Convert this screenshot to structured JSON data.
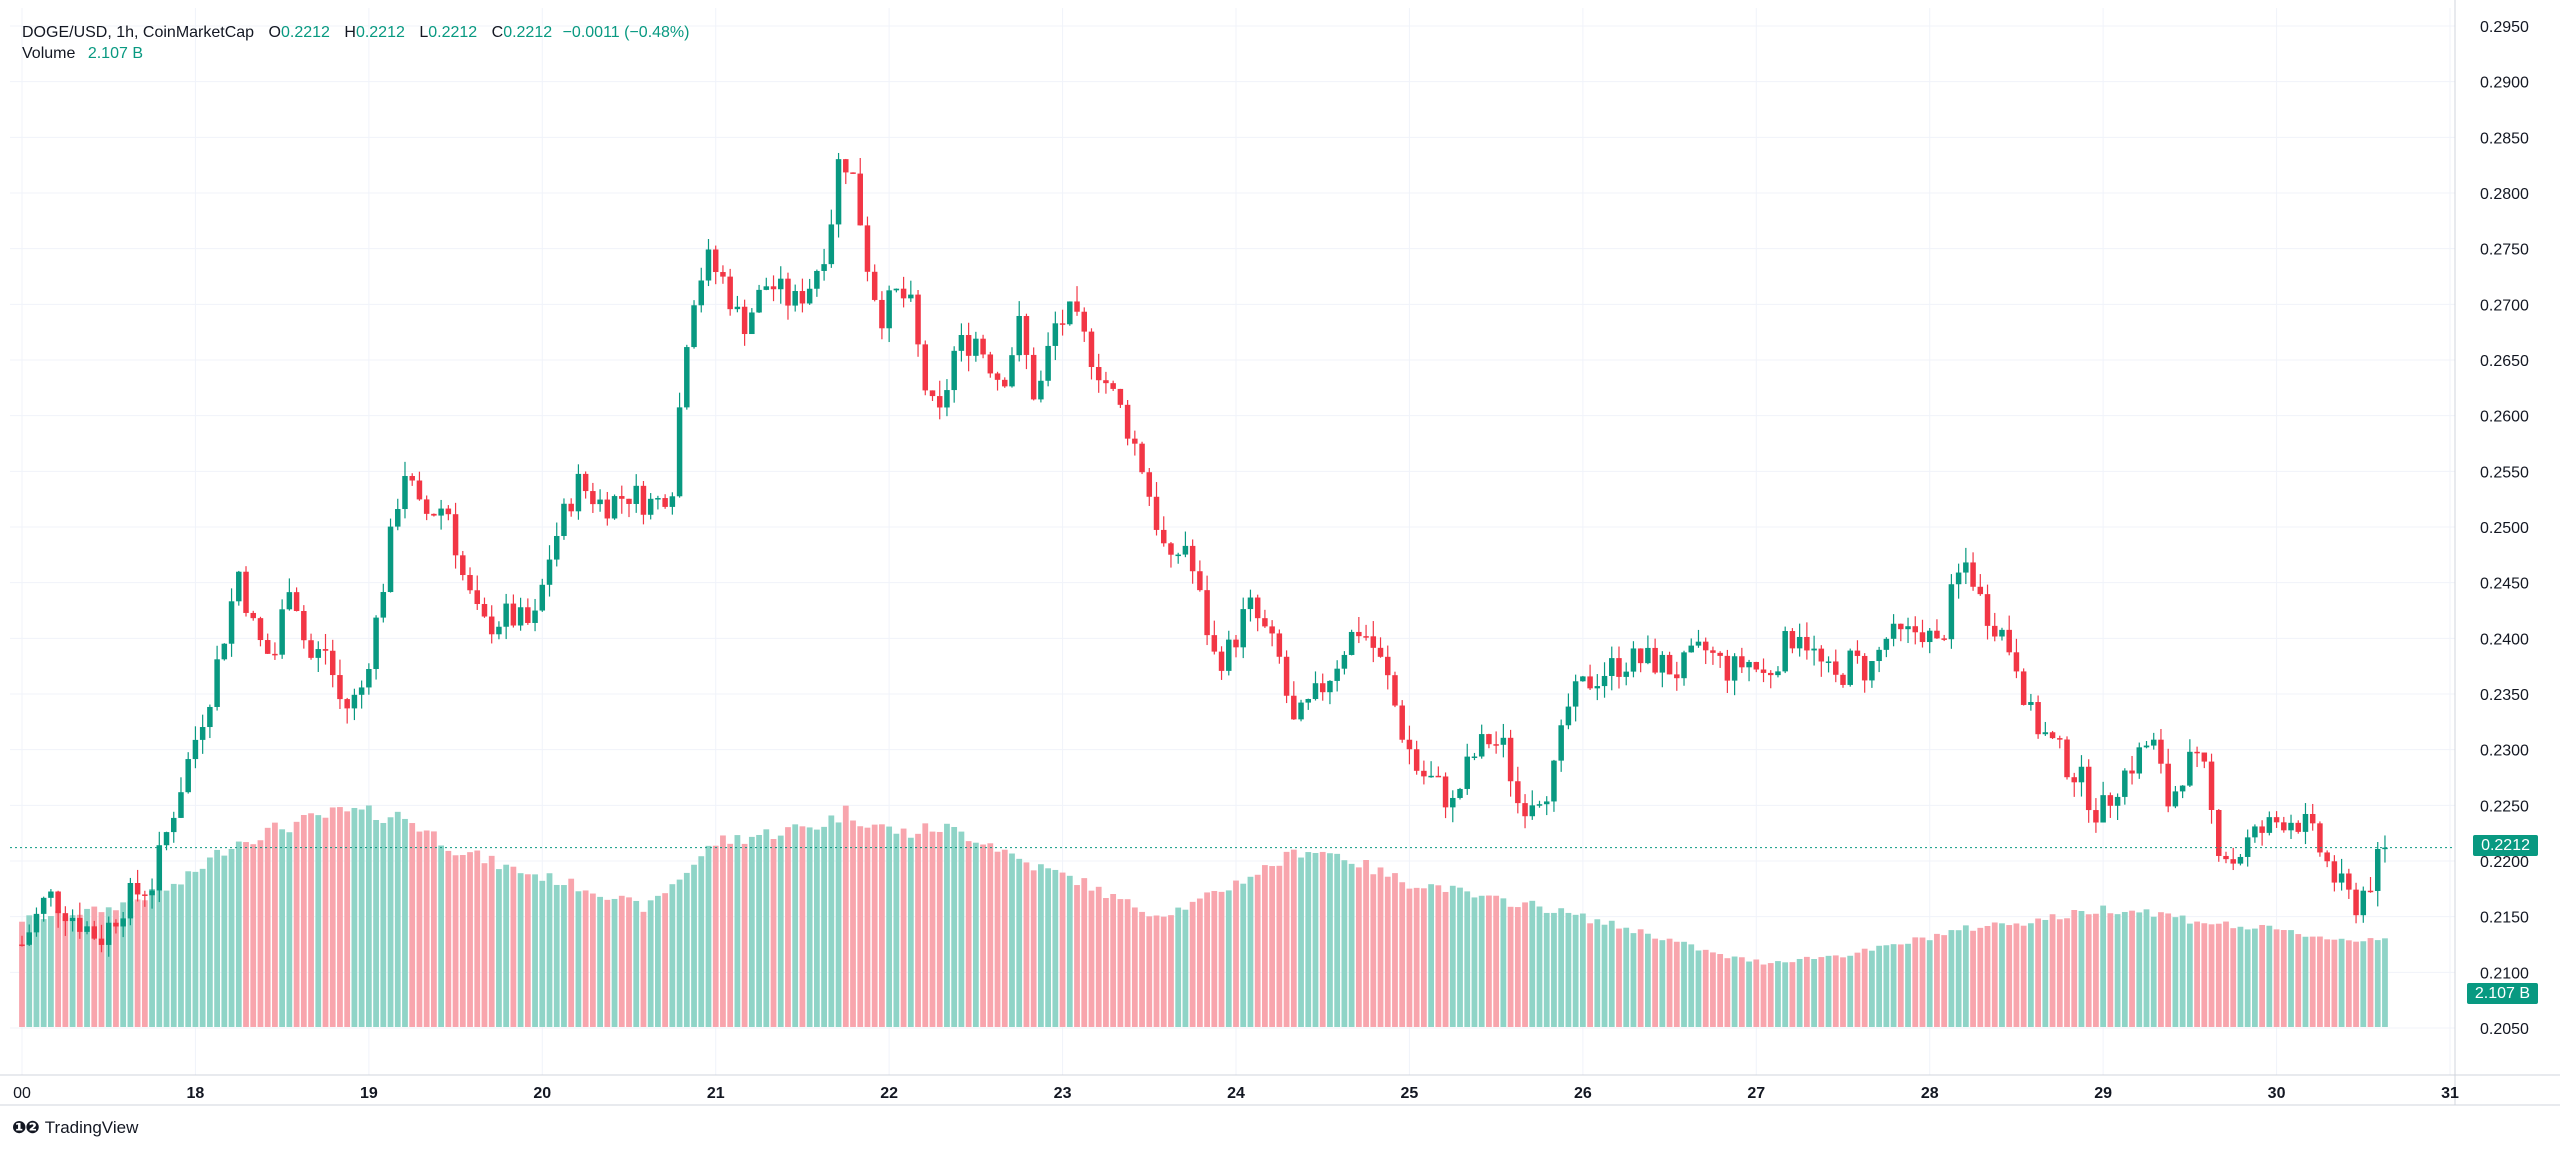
{
  "legend": {
    "symbol": "DOGE/USD, 1h, CoinMarketCap",
    "o_label": "O",
    "o_value": "0.2212",
    "h_label": "H",
    "h_value": "0.2212",
    "l_label": "L",
    "l_value": "0.2212",
    "c_label": "C",
    "c_value": "0.2212",
    "change": "−0.0011 (−0.48%)",
    "volume_label": "Volume",
    "volume_value": "2.107 B"
  },
  "price_tag": "0.2212",
  "volume_tag": "2.107 B",
  "brand": {
    "logo": "❶❷",
    "name": "TradingView"
  },
  "colors": {
    "up": "#089981",
    "down": "#f23645",
    "vol_up": "#8fd4c7",
    "vol_down": "#f8a5ad",
    "grid": "#f0f3fa",
    "last_line": "#089981"
  },
  "chart_data": {
    "type": "candlestick",
    "symbol": "DOGE/USD",
    "interval": "1h",
    "source": "CoinMarketCap",
    "y_ticks": [
      "0.2950",
      "0.2900",
      "0.2850",
      "0.2800",
      "0.2750",
      "0.2700",
      "0.2650",
      "0.2600",
      "0.2550",
      "0.2500",
      "0.2450",
      "0.2400",
      "0.2350",
      "0.2300",
      "0.2250",
      "0.2200",
      "0.2150",
      "0.2100",
      "0.2050"
    ],
    "x_ticks": [
      "00",
      "18",
      "19",
      "20",
      "21",
      "22",
      "23",
      "24",
      "25",
      "26",
      "27",
      "28",
      "29",
      "30",
      "31"
    ],
    "ylim": [
      0.2005,
      0.296
    ],
    "grid": true,
    "last_price": 0.2212,
    "close_path": [
      [
        17.0,
        0.2125
      ],
      [
        17.15,
        0.217
      ],
      [
        17.3,
        0.215
      ],
      [
        17.45,
        0.213
      ],
      [
        17.6,
        0.2165
      ],
      [
        17.75,
        0.218
      ],
      [
        17.9,
        0.226
      ],
      [
        18.1,
        0.236
      ],
      [
        18.25,
        0.246
      ],
      [
        18.35,
        0.24
      ],
      [
        18.45,
        0.238
      ],
      [
        18.55,
        0.246
      ],
      [
        18.65,
        0.238
      ],
      [
        18.75,
        0.239
      ],
      [
        18.85,
        0.2335
      ],
      [
        18.95,
        0.235
      ],
      [
        19.05,
        0.242
      ],
      [
        19.2,
        0.2555
      ],
      [
        19.3,
        0.251
      ],
      [
        19.45,
        0.252
      ],
      [
        19.55,
        0.245
      ],
      [
        19.65,
        0.241
      ],
      [
        19.8,
        0.242
      ],
      [
        19.95,
        0.241
      ],
      [
        20.05,
        0.248
      ],
      [
        20.2,
        0.254
      ],
      [
        20.35,
        0.252
      ],
      [
        20.5,
        0.253
      ],
      [
        20.65,
        0.252
      ],
      [
        20.75,
        0.254
      ],
      [
        20.85,
        0.27
      ],
      [
        20.95,
        0.274
      ],
      [
        21.05,
        0.272
      ],
      [
        21.15,
        0.268
      ],
      [
        21.3,
        0.272
      ],
      [
        21.45,
        0.27
      ],
      [
        21.55,
        0.272
      ],
      [
        21.65,
        0.276
      ],
      [
        21.72,
        0.284
      ],
      [
        21.8,
        0.281
      ],
      [
        21.87,
        0.274
      ],
      [
        21.95,
        0.269
      ],
      [
        22.05,
        0.271
      ],
      [
        22.12,
        0.27
      ],
      [
        22.2,
        0.263
      ],
      [
        22.28,
        0.259
      ],
      [
        22.38,
        0.266
      ],
      [
        22.5,
        0.267
      ],
      [
        22.65,
        0.263
      ],
      [
        22.75,
        0.268
      ],
      [
        22.85,
        0.261
      ],
      [
        22.95,
        0.268
      ],
      [
        23.05,
        0.269
      ],
      [
        23.15,
        0.266
      ],
      [
        23.25,
        0.263
      ],
      [
        23.35,
        0.26
      ],
      [
        23.45,
        0.256
      ],
      [
        23.55,
        0.25
      ],
      [
        23.62,
        0.246
      ],
      [
        23.7,
        0.249
      ],
      [
        23.8,
        0.243
      ],
      [
        23.88,
        0.238
      ],
      [
        23.97,
        0.239
      ],
      [
        24.07,
        0.243
      ],
      [
        24.15,
        0.241
      ],
      [
        24.25,
        0.238
      ],
      [
        24.33,
        0.232
      ],
      [
        24.43,
        0.234
      ],
      [
        24.55,
        0.237
      ],
      [
        24.65,
        0.24
      ],
      [
        24.72,
        0.241
      ],
      [
        24.8,
        0.239
      ],
      [
        24.88,
        0.236
      ],
      [
        24.95,
        0.232
      ],
      [
        25.05,
        0.228
      ],
      [
        25.15,
        0.227
      ],
      [
        25.25,
        0.225
      ],
      [
        25.35,
        0.229
      ],
      [
        25.45,
        0.231
      ],
      [
        25.55,
        0.23
      ],
      [
        25.63,
        0.225
      ],
      [
        25.72,
        0.226
      ],
      [
        25.82,
        0.227
      ],
      [
        25.92,
        0.234
      ],
      [
        26.02,
        0.236
      ],
      [
        26.12,
        0.237
      ],
      [
        26.25,
        0.238
      ],
      [
        26.4,
        0.238
      ],
      [
        26.55,
        0.237
      ],
      [
        26.7,
        0.239
      ],
      [
        26.85,
        0.237
      ],
      [
        26.95,
        0.238
      ],
      [
        27.05,
        0.2365
      ],
      [
        27.15,
        0.239
      ],
      [
        27.25,
        0.241
      ],
      [
        27.35,
        0.238
      ],
      [
        27.45,
        0.236
      ],
      [
        27.55,
        0.238
      ],
      [
        27.65,
        0.237
      ],
      [
        27.75,
        0.24
      ],
      [
        27.85,
        0.24
      ],
      [
        27.95,
        0.241
      ],
      [
        28.05,
        0.239
      ],
      [
        28.15,
        0.245
      ],
      [
        28.22,
        0.247
      ],
      [
        28.3,
        0.243
      ],
      [
        28.4,
        0.241
      ],
      [
        28.5,
        0.238
      ],
      [
        28.58,
        0.233
      ],
      [
        28.68,
        0.231
      ],
      [
        28.78,
        0.229
      ],
      [
        28.88,
        0.227
      ],
      [
        28.98,
        0.224
      ],
      [
        29.08,
        0.227
      ],
      [
        29.18,
        0.229
      ],
      [
        29.28,
        0.231
      ],
      [
        29.38,
        0.225
      ],
      [
        29.48,
        0.229
      ],
      [
        29.58,
        0.228
      ],
      [
        29.65,
        0.222
      ],
      [
        29.75,
        0.22
      ],
      [
        29.85,
        0.222
      ],
      [
        29.95,
        0.223
      ],
      [
        30.05,
        0.224
      ],
      [
        30.15,
        0.2235
      ],
      [
        30.25,
        0.221
      ],
      [
        30.35,
        0.218
      ],
      [
        30.45,
        0.216
      ],
      [
        30.55,
        0.2185
      ],
      [
        30.62,
        0.2212
      ]
    ],
    "volume_profile": [
      [
        17.0,
        0.5
      ],
      [
        17.5,
        0.55
      ],
      [
        17.9,
        0.66
      ],
      [
        18.2,
        0.85
      ],
      [
        18.5,
        0.93
      ],
      [
        18.85,
        1.0
      ],
      [
        19.2,
        0.98
      ],
      [
        19.5,
        0.83
      ],
      [
        19.8,
        0.74
      ],
      [
        20.1,
        0.68
      ],
      [
        20.4,
        0.61
      ],
      [
        20.6,
        0.55
      ],
      [
        20.8,
        0.7
      ],
      [
        21.0,
        0.86
      ],
      [
        21.3,
        0.9
      ],
      [
        21.6,
        0.94
      ],
      [
        21.75,
        1.0
      ],
      [
        21.95,
        0.93
      ],
      [
        22.1,
        0.9
      ],
      [
        22.3,
        0.93
      ],
      [
        22.55,
        0.87
      ],
      [
        22.8,
        0.76
      ],
      [
        23.1,
        0.68
      ],
      [
        23.3,
        0.6
      ],
      [
        23.55,
        0.52
      ],
      [
        23.75,
        0.57
      ],
      [
        24.0,
        0.67
      ],
      [
        24.2,
        0.75
      ],
      [
        24.4,
        0.83
      ],
      [
        24.6,
        0.8
      ],
      [
        24.8,
        0.73
      ],
      [
        25.0,
        0.67
      ],
      [
        25.2,
        0.65
      ],
      [
        25.4,
        0.6
      ],
      [
        25.7,
        0.57
      ],
      [
        25.95,
        0.52
      ],
      [
        26.1,
        0.49
      ],
      [
        26.4,
        0.43
      ],
      [
        26.6,
        0.38
      ],
      [
        26.8,
        0.33
      ],
      [
        27.05,
        0.3
      ],
      [
        27.3,
        0.32
      ],
      [
        27.55,
        0.34
      ],
      [
        27.8,
        0.38
      ],
      [
        28.05,
        0.43
      ],
      [
        28.3,
        0.47
      ],
      [
        28.55,
        0.49
      ],
      [
        28.8,
        0.52
      ],
      [
        29.0,
        0.55
      ],
      [
        29.25,
        0.54
      ],
      [
        29.5,
        0.5
      ],
      [
        29.75,
        0.47
      ],
      [
        30.0,
        0.45
      ],
      [
        30.25,
        0.42
      ],
      [
        30.45,
        0.4
      ],
      [
        30.62,
        0.42
      ]
    ],
    "volume_note": "relative volume levels 0-1"
  }
}
